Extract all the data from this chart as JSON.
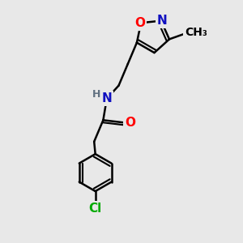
{
  "bg_color": "#e8e8e8",
  "bond_color": "#000000",
  "bond_width": 1.8,
  "atom_colors": {
    "N": "#1010c0",
    "O": "#ff0000",
    "Cl": "#00aa00",
    "H": "#607080",
    "C": "#000000"
  },
  "font_size_atom": 11,
  "font_size_small": 9,
  "font_size_methyl": 10
}
